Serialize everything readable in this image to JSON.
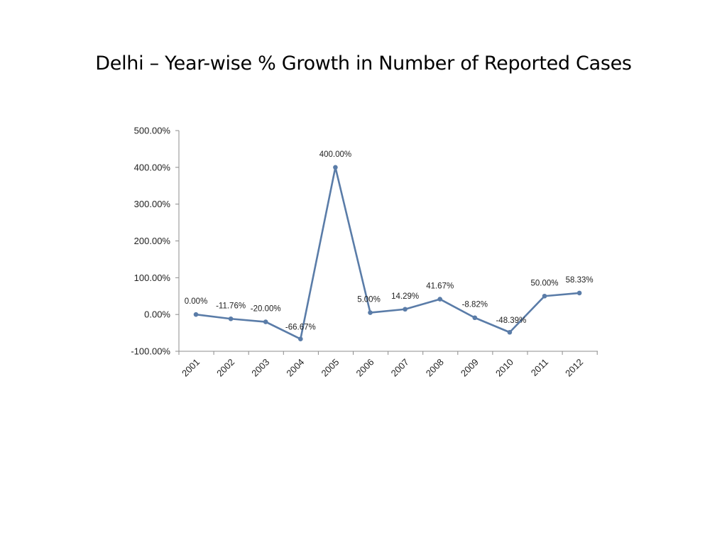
{
  "slide": {
    "title": "Delhi – Year-wise % Growth in Number of Reported Cases"
  },
  "colors": {
    "series_line": "#5a7ca8",
    "axis": "#8c8c8c",
    "text": "#222222"
  },
  "chart_data": {
    "type": "line",
    "title": "",
    "xlabel": "",
    "ylabel": "",
    "categories": [
      "2001",
      "2002",
      "2003",
      "2004",
      "2005",
      "2006",
      "2007",
      "2008",
      "2009",
      "2010",
      "2011",
      "2012"
    ],
    "series": [
      {
        "values": [
          0.0,
          -11.76,
          -20.0,
          -66.67,
          400.0,
          5.0,
          14.29,
          41.67,
          -8.82,
          -48.39,
          50.0,
          58.33
        ],
        "data_labels": [
          "0.00%",
          "-11.76%",
          "-20.00%",
          "-66.67%",
          "400.00%",
          "5.00%",
          "14.29%",
          "41.67%",
          "-8.82%",
          "-48.39%",
          "50.00%",
          "58.33%"
        ]
      }
    ],
    "ylim": [
      -100,
      500
    ],
    "yticks": [
      -100,
      0,
      100,
      200,
      300,
      400,
      500
    ],
    "ytick_labels": [
      "-100.00%",
      "0.00%",
      "100.00%",
      "200.00%",
      "300.00%",
      "400.00%",
      "500.00%"
    ],
    "grid": false,
    "legend": "none"
  }
}
